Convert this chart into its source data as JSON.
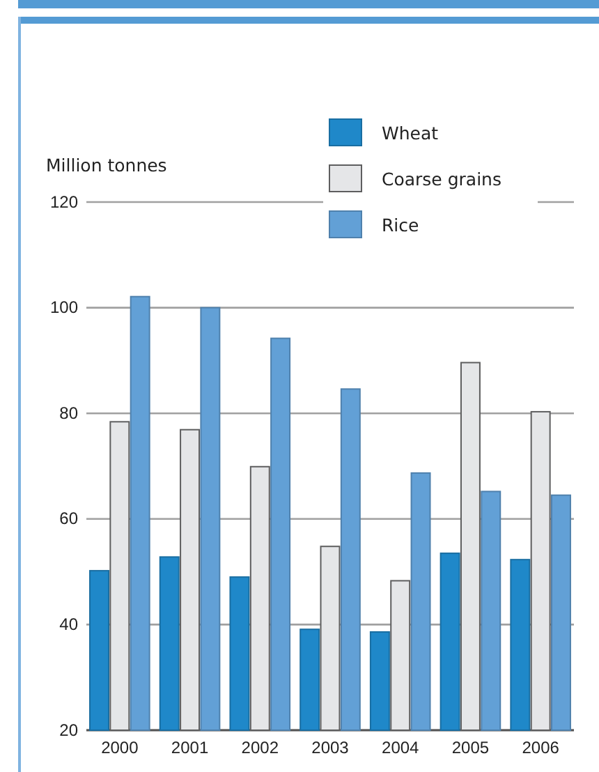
{
  "chart_data": {
    "type": "bar",
    "ylabel": "Million tonnes",
    "categories": [
      "2000",
      "2001",
      "2002",
      "2003",
      "2004",
      "2005",
      "2006"
    ],
    "series": [
      {
        "name": "Wheat",
        "color": "#1f88c9",
        "values": [
          50.2,
          52.8,
          49,
          39.1,
          38.6,
          53.5,
          52.3
        ]
      },
      {
        "name": "Coarse grains",
        "color": "#e5e6e8",
        "values": [
          78.4,
          76.9,
          69.9,
          54.8,
          48.3,
          89.6,
          80.3
        ]
      },
      {
        "name": "Rice",
        "color": "#62a0d6",
        "values": [
          102.1,
          100,
          94.2,
          84.6,
          68.7,
          65.2,
          64.5
        ]
      }
    ],
    "ylim": [
      20,
      120
    ],
    "yticks": [
      20,
      40,
      60,
      80,
      100,
      120
    ],
    "grid": "y",
    "legend": "top right"
  }
}
